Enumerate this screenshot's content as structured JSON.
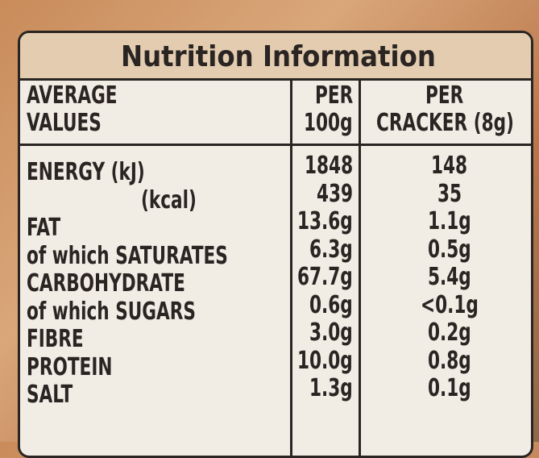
{
  "title": "Nutrition Information",
  "table": {
    "header": [
      [
        "AVERAGE",
        "VALUES"
      ],
      [
        "PER",
        "100g"
      ],
      [
        "PER",
        "CRACKER (8g)"
      ]
    ],
    "rows": [
      [
        "ENERGY (kJ)",
        "1848",
        "148"
      ],
      [
        "(kcal)",
        "439",
        "35"
      ],
      [
        "FAT",
        "13.6g",
        "1.1g"
      ],
      [
        "of which SATURATES",
        "6.3g",
        "0.5g"
      ],
      [
        "CARBOHYDRATE",
        "67.7g",
        "5.4g"
      ],
      [
        "of which SUGARS",
        "0.6g",
        "<0.1g"
      ],
      [
        "FIBRE",
        "3.0g",
        "0.2g"
      ],
      [
        "PROTEIN",
        "10.0g",
        "0.8g"
      ],
      [
        "SALT",
        "1.3g",
        "0.1g"
      ]
    ]
  }
}
